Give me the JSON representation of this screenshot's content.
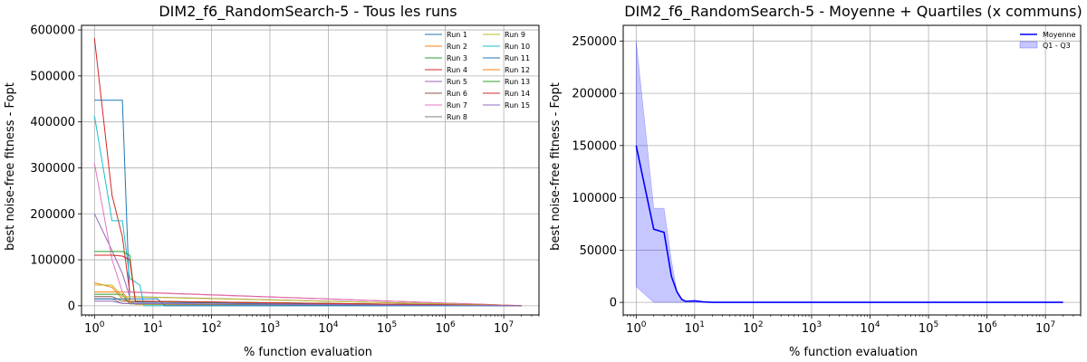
{
  "chart_data": [
    {
      "type": "line",
      "title": "DIM2_f6_RandomSearch-5 - Tous les runs",
      "xlabel": "% function evaluation",
      "ylabel": "best noise-free fitness - Fopt",
      "xscale": "log",
      "xlim": [
        0.6,
        40000000
      ],
      "ylim": [
        -20000,
        610000
      ],
      "x_ticks": [
        1,
        10,
        100,
        1000,
        10000,
        100000,
        1000000,
        10000000
      ],
      "x_tick_labels": [
        [
          "10",
          "0"
        ],
        [
          "10",
          "1"
        ],
        [
          "10",
          "2"
        ],
        [
          "10",
          "3"
        ],
        [
          "10",
          "4"
        ],
        [
          "10",
          "5"
        ],
        [
          "10",
          "6"
        ],
        [
          "10",
          "7"
        ]
      ],
      "y_ticks": [
        0,
        100000,
        200000,
        300000,
        400000,
        500000,
        600000
      ],
      "y_tick_labels": [
        "0",
        "100000",
        "200000",
        "300000",
        "400000",
        "500000",
        "600000"
      ],
      "grid": true,
      "legend_position": "top-right",
      "legend_columns": 2,
      "series": [
        {
          "name": "Run 1",
          "color": "#1f77b4",
          "points": [
            [
              1,
              447000
            ],
            [
              3,
              447000
            ],
            [
              4,
              8000
            ],
            [
              20000000,
              0
            ]
          ]
        },
        {
          "name": "Run 2",
          "color": "#ff7f0e",
          "points": [
            [
              1,
              50000
            ],
            [
              2,
              40000
            ],
            [
              3,
              15000
            ],
            [
              5,
              3000
            ],
            [
              20000000,
              0
            ]
          ]
        },
        {
          "name": "Run 3",
          "color": "#2ca02c",
          "points": [
            [
              1,
              25000
            ],
            [
              3,
              25000
            ],
            [
              4,
              4000
            ],
            [
              20000000,
              0
            ]
          ]
        },
        {
          "name": "Run 4",
          "color": "#d62728",
          "points": [
            [
              1,
              582000
            ],
            [
              2,
              240000
            ],
            [
              3,
              150000
            ],
            [
              4,
              30000
            ],
            [
              20000000,
              0
            ]
          ]
        },
        {
          "name": "Run 5",
          "color": "#9467bd",
          "points": [
            [
              1,
              200000
            ],
            [
              2,
              120000
            ],
            [
              3,
              70000
            ],
            [
              4,
              20000
            ],
            [
              20000000,
              0
            ]
          ]
        },
        {
          "name": "Run 6",
          "color": "#8c564b",
          "points": [
            [
              1,
              20000
            ],
            [
              2,
              20000
            ],
            [
              3,
              10000
            ],
            [
              20000000,
              0
            ]
          ]
        },
        {
          "name": "Run 7",
          "color": "#e377c2",
          "points": [
            [
              1,
              310000
            ],
            [
              2,
              100000
            ],
            [
              3,
              30000
            ],
            [
              20000000,
              0
            ]
          ]
        },
        {
          "name": "Run 8",
          "color": "#7f7f7f",
          "points": [
            [
              1,
              15000
            ],
            [
              2,
              15000
            ],
            [
              3,
              5000
            ],
            [
              20000000,
              0
            ]
          ]
        },
        {
          "name": "Run 9",
          "color": "#bcbd22",
          "points": [
            [
              1,
              45000
            ],
            [
              2,
              45000
            ],
            [
              3,
              20000
            ],
            [
              20000000,
              0
            ]
          ]
        },
        {
          "name": "Run 10",
          "color": "#17becf",
          "points": [
            [
              1,
              413000
            ],
            [
              2,
              185000
            ],
            [
              3,
              185000
            ],
            [
              4,
              60000
            ],
            [
              6,
              45000
            ],
            [
              7,
              0
            ],
            [
              20000000,
              0
            ]
          ]
        },
        {
          "name": "Run 11",
          "color": "#1f77b4",
          "points": [
            [
              1,
              15000
            ],
            [
              12,
              15000
            ],
            [
              16,
              0
            ],
            [
              20000000,
              0
            ]
          ]
        },
        {
          "name": "Run 12",
          "color": "#ff7f0e",
          "points": [
            [
              1,
              30000
            ],
            [
              3,
              30000
            ],
            [
              4,
              10000
            ],
            [
              20000000,
              0
            ]
          ]
        },
        {
          "name": "Run 13",
          "color": "#2ca02c",
          "points": [
            [
              1,
              118000
            ],
            [
              3,
              118000
            ],
            [
              4,
              110000
            ],
            [
              5,
              10000
            ],
            [
              20000000,
              0
            ]
          ]
        },
        {
          "name": "Run 14",
          "color": "#d62728",
          "points": [
            [
              1,
              110000
            ],
            [
              2,
              110000
            ],
            [
              3,
              108000
            ],
            [
              4,
              100000
            ],
            [
              5,
              10000
            ],
            [
              20000000,
              0
            ]
          ]
        },
        {
          "name": "Run 15",
          "color": "#9467bd",
          "points": [
            [
              1,
              10000
            ],
            [
              2,
              10000
            ],
            [
              3,
              5000
            ],
            [
              20000000,
              0
            ]
          ]
        }
      ]
    },
    {
      "type": "line",
      "title": "DIM2_f6_RandomSearch-5 - Moyenne + Quartiles (x communs)",
      "xlabel": "% function evaluation",
      "ylabel": "best noise-free fitness - Fopt",
      "xscale": "log",
      "xlim": [
        0.6,
        40000000
      ],
      "ylim": [
        -12000,
        265000
      ],
      "x_ticks": [
        1,
        10,
        100,
        1000,
        10000,
        100000,
        1000000,
        10000000
      ],
      "x_tick_labels": [
        [
          "10",
          "0"
        ],
        [
          "10",
          "1"
        ],
        [
          "10",
          "2"
        ],
        [
          "10",
          "3"
        ],
        [
          "10",
          "4"
        ],
        [
          "10",
          "5"
        ],
        [
          "10",
          "6"
        ],
        [
          "10",
          "7"
        ]
      ],
      "y_ticks": [
        0,
        50000,
        100000,
        150000,
        200000,
        250000
      ],
      "y_tick_labels": [
        "0",
        "50000",
        "100000",
        "150000",
        "200000",
        "250000"
      ],
      "grid": true,
      "legend_position": "top-right",
      "series": [
        {
          "name": "Moyenne",
          "color": "#0000ff",
          "points": [
            [
              1,
              150000
            ],
            [
              2,
              70000
            ],
            [
              3,
              67000
            ],
            [
              4,
              25000
            ],
            [
              5,
              10000
            ],
            [
              6,
              3000
            ],
            [
              7,
              1000
            ],
            [
              10,
              1500
            ],
            [
              14,
              500
            ],
            [
              20,
              0
            ],
            [
              20000000,
              0
            ]
          ]
        }
      ],
      "band": {
        "name": "Q1 - Q3",
        "color": "#0000ff",
        "upper": [
          [
            1,
            250000
          ],
          [
            2,
            90000
          ],
          [
            3,
            90000
          ],
          [
            4,
            40000
          ],
          [
            5,
            10000
          ],
          [
            6,
            2000
          ],
          [
            7,
            1000
          ],
          [
            10,
            1000
          ],
          [
            20,
            0
          ],
          [
            20000000,
            0
          ]
        ],
        "lower": [
          [
            1,
            15000
          ],
          [
            2,
            0
          ],
          [
            3,
            0
          ],
          [
            4,
            0
          ],
          [
            20000000,
            0
          ]
        ]
      }
    }
  ]
}
